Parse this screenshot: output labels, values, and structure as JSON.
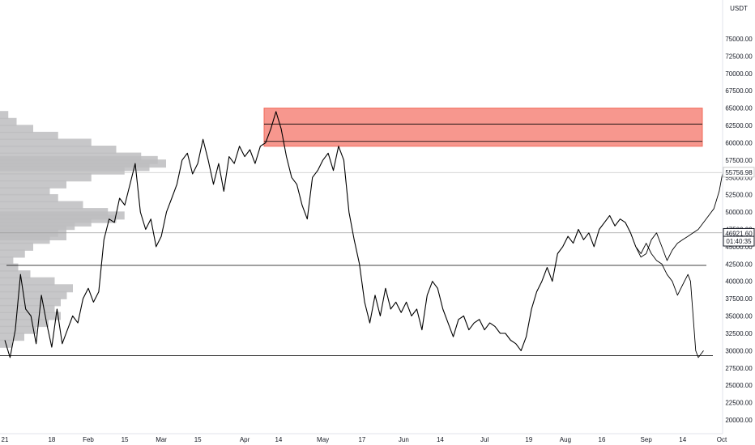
{
  "chart_data": {
    "type": "line",
    "title": "",
    "xlabel": "",
    "ylabel": "",
    "y_axis_unit": "USDT",
    "ylim": [
      18750,
      78750
    ],
    "y_ticks": [
      20000,
      22500,
      25000,
      27500,
      30000,
      32500,
      35000,
      37500,
      40000,
      42500,
      45000,
      47500,
      50000,
      52500,
      55000,
      57500,
      60000,
      62500,
      65000,
      67500,
      70000,
      72500,
      75000
    ],
    "y_tick_labels": [
      "20000.00",
      "22500.00",
      "25000.00",
      "27500.00",
      "30000.00",
      "32500.00",
      "35000.00",
      "37500.00",
      "40000.00",
      "42500.00",
      "45000.00",
      "47500.00",
      "50000.00",
      "52500.00",
      "55000.00",
      "57500.00",
      "60000.00",
      "62500.00",
      "65000.00",
      "67500.00",
      "70000.00",
      "72500.00",
      "75000.00"
    ],
    "x_tick_labels": [
      "21",
      "18",
      "Feb",
      "15",
      "Mar",
      "15",
      "Apr",
      "14",
      "May",
      "17",
      "Jun",
      "14",
      "Jul",
      "19",
      "Aug",
      "16",
      "Sep",
      "14",
      "Oct"
    ],
    "x_tick_days": [
      0,
      18,
      32,
      46,
      60,
      74,
      92,
      105,
      122,
      137,
      153,
      167,
      184,
      201,
      215,
      229,
      246,
      260,
      275
    ],
    "series": [
      {
        "kind": "price",
        "color": "#000000",
        "points": [
          [
            0,
            31500
          ],
          [
            2,
            29000
          ],
          [
            4,
            33000
          ],
          [
            6,
            41000
          ],
          [
            8,
            36000
          ],
          [
            10,
            35000
          ],
          [
            12,
            31000
          ],
          [
            14,
            38000
          ],
          [
            16,
            34000
          ],
          [
            18,
            30500
          ],
          [
            20,
            36000
          ],
          [
            22,
            31000
          ],
          [
            24,
            33000
          ],
          [
            26,
            35000
          ],
          [
            28,
            34000
          ],
          [
            30,
            37500
          ],
          [
            32,
            39000
          ],
          [
            34,
            37000
          ],
          [
            36,
            38500
          ],
          [
            38,
            46000
          ],
          [
            40,
            49000
          ],
          [
            42,
            48500
          ],
          [
            44,
            52000
          ],
          [
            46,
            51000
          ],
          [
            48,
            54000
          ],
          [
            50,
            57000
          ],
          [
            52,
            50000
          ],
          [
            54,
            47500
          ],
          [
            56,
            49000
          ],
          [
            58,
            45000
          ],
          [
            60,
            46500
          ],
          [
            62,
            50000
          ],
          [
            64,
            52000
          ],
          [
            66,
            54000
          ],
          [
            68,
            57500
          ],
          [
            70,
            58500
          ],
          [
            72,
            55500
          ],
          [
            74,
            57000
          ],
          [
            76,
            60500
          ],
          [
            78,
            57500
          ],
          [
            80,
            54000
          ],
          [
            82,
            57000
          ],
          [
            84,
            53000
          ],
          [
            86,
            58000
          ],
          [
            88,
            57000
          ],
          [
            90,
            59500
          ],
          [
            92,
            58000
          ],
          [
            94,
            59000
          ],
          [
            96,
            57000
          ],
          [
            98,
            59500
          ],
          [
            100,
            60000
          ],
          [
            102,
            62000
          ],
          [
            104,
            64500
          ],
          [
            106,
            62000
          ],
          [
            108,
            58000
          ],
          [
            110,
            55000
          ],
          [
            112,
            54000
          ],
          [
            114,
            51000
          ],
          [
            116,
            49000
          ],
          [
            118,
            55000
          ],
          [
            120,
            56000
          ],
          [
            122,
            57500
          ],
          [
            124,
            58500
          ],
          [
            126,
            56000
          ],
          [
            128,
            59500
          ],
          [
            130,
            57500
          ],
          [
            132,
            50000
          ],
          [
            134,
            46000
          ],
          [
            136,
            42500
          ],
          [
            138,
            37000
          ],
          [
            140,
            34000
          ],
          [
            142,
            38000
          ],
          [
            144,
            35000
          ],
          [
            146,
            39000
          ],
          [
            148,
            36000
          ],
          [
            150,
            37000
          ],
          [
            152,
            35500
          ],
          [
            154,
            37000
          ],
          [
            156,
            35000
          ],
          [
            158,
            36000
          ],
          [
            160,
            33000
          ],
          [
            162,
            38000
          ],
          [
            164,
            40000
          ],
          [
            166,
            39000
          ],
          [
            168,
            36000
          ],
          [
            170,
            34000
          ],
          [
            172,
            32000
          ],
          [
            174,
            34500
          ],
          [
            176,
            35000
          ],
          [
            178,
            33000
          ],
          [
            180,
            34000
          ],
          [
            182,
            34500
          ],
          [
            184,
            33000
          ],
          [
            186,
            34000
          ],
          [
            188,
            33500
          ],
          [
            190,
            32500
          ],
          [
            192,
            32500
          ],
          [
            194,
            31500
          ],
          [
            196,
            31000
          ],
          [
            198,
            30000
          ],
          [
            200,
            32000
          ],
          [
            202,
            36000
          ],
          [
            204,
            38500
          ],
          [
            206,
            40000
          ],
          [
            208,
            42000
          ],
          [
            210,
            40000
          ],
          [
            212,
            44000
          ],
          [
            214,
            45000
          ],
          [
            216,
            46500
          ],
          [
            218,
            45500
          ],
          [
            220,
            47500
          ],
          [
            222,
            46000
          ],
          [
            224,
            47000
          ],
          [
            226,
            45000
          ],
          [
            228,
            47500
          ],
          [
            230,
            48500
          ],
          [
            232,
            49500
          ],
          [
            234,
            48000
          ],
          [
            236,
            49000
          ],
          [
            238,
            48500
          ],
          [
            240,
            47000
          ]
        ]
      },
      {
        "kind": "projection",
        "color": "#000000",
        "points": [
          [
            240,
            47000
          ],
          [
            242,
            45000
          ],
          [
            244,
            43500
          ],
          [
            246,
            44000
          ],
          [
            248,
            46000
          ],
          [
            250,
            47000
          ],
          [
            252,
            45000
          ],
          [
            254,
            43000
          ],
          [
            256,
            44500
          ],
          [
            258,
            45500
          ],
          [
            260,
            46000
          ],
          [
            262,
            46500
          ],
          [
            264,
            47000
          ],
          [
            266,
            47500
          ],
          [
            268,
            48500
          ],
          [
            270,
            49500
          ],
          [
            272,
            50500
          ],
          [
            274,
            53000
          ],
          [
            276,
            57000
          ]
        ]
      },
      {
        "kind": "projection",
        "color": "#000000",
        "points": [
          [
            240,
            47000
          ],
          [
            242,
            45000
          ],
          [
            244,
            44000
          ],
          [
            246,
            45500
          ],
          [
            248,
            44000
          ],
          [
            250,
            43000
          ],
          [
            252,
            42500
          ],
          [
            254,
            41000
          ],
          [
            256,
            40000
          ],
          [
            258,
            38000
          ],
          [
            260,
            39500
          ],
          [
            262,
            41000
          ],
          [
            263,
            40000
          ],
          [
            265,
            30000
          ],
          [
            266,
            29000
          ],
          [
            268,
            30000
          ]
        ]
      }
    ],
    "volume_profile_upper": [
      {
        "price": 64000,
        "volume": 0.05
      },
      {
        "price": 63000,
        "volume": 0.1
      },
      {
        "price": 62000,
        "volume": 0.2
      },
      {
        "price": 61000,
        "volume": 0.35
      },
      {
        "price": 60000,
        "volume": 0.55
      },
      {
        "price": 59000,
        "volume": 0.7
      },
      {
        "price": 58000,
        "volume": 0.85
      },
      {
        "price": 57500,
        "volume": 0.95
      },
      {
        "price": 57000,
        "volume": 1.0
      },
      {
        "price": 56500,
        "volume": 0.9
      },
      {
        "price": 56000,
        "volume": 0.75
      },
      {
        "price": 55000,
        "volume": 0.55
      },
      {
        "price": 54000,
        "volume": 0.4
      },
      {
        "price": 53000,
        "volume": 0.3
      },
      {
        "price": 52000,
        "volume": 0.35
      },
      {
        "price": 51000,
        "volume": 0.5
      },
      {
        "price": 50000,
        "volume": 0.65
      },
      {
        "price": 49500,
        "volume": 0.75
      },
      {
        "price": 49000,
        "volume": 0.7
      },
      {
        "price": 48500,
        "volume": 0.55
      },
      {
        "price": 48000,
        "volume": 0.45
      },
      {
        "price": 47500,
        "volume": 0.4
      },
      {
        "price": 47000,
        "volume": 0.35
      },
      {
        "price": 46500,
        "volume": 0.4
      },
      {
        "price": 46000,
        "volume": 0.3
      },
      {
        "price": 45000,
        "volume": 0.2
      },
      {
        "price": 44000,
        "volume": 0.15
      },
      {
        "price": 43000,
        "volume": 0.08
      }
    ],
    "volume_profile_lower": [
      {
        "price": 42000,
        "volume": 0.15
      },
      {
        "price": 41000,
        "volume": 0.25
      },
      {
        "price": 40000,
        "volume": 0.45
      },
      {
        "price": 39000,
        "volume": 0.6
      },
      {
        "price": 38000,
        "volume": 0.55
      },
      {
        "price": 37000,
        "volume": 0.5
      },
      {
        "price": 36000,
        "volume": 0.45
      },
      {
        "price": 35000,
        "volume": 0.5
      },
      {
        "price": 34000,
        "volume": 0.4
      },
      {
        "price": 33000,
        "volume": 0.3
      },
      {
        "price": 32000,
        "volume": 0.2
      },
      {
        "price": 31000,
        "volume": 0.1
      }
    ],
    "resistance_zone": {
      "from": 59500,
      "to": 65000,
      "color": "#f7978e",
      "border_color": "#f26b5b"
    },
    "zone_lines": [
      62700,
      60200
    ],
    "horizontal_levels": [
      {
        "price": 42300,
        "color": "#000000"
      },
      {
        "price": 29300,
        "color": "#000000"
      },
      {
        "price": 47000,
        "color": "#9e9e9e"
      },
      {
        "price": 55700,
        "color": "#c8c8c8"
      }
    ],
    "price_tags": [
      {
        "text": "55756.98",
        "price": 55756.98,
        "style": "light"
      },
      {
        "text": "46921.60",
        "price": 46921.6,
        "style": "dark"
      },
      {
        "text": "01:40:35",
        "price": 45800,
        "style": "dark"
      }
    ],
    "colors": {
      "price": "#000000",
      "volume_profile": "#bdbdc0",
      "axis_text": "#131722"
    }
  }
}
